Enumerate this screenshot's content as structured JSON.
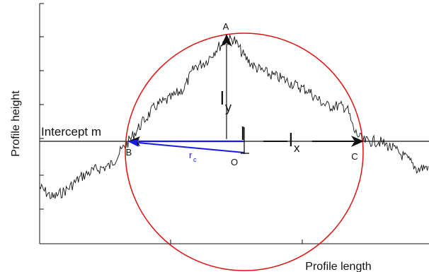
{
  "labels": {
    "y_axis": "Profile height",
    "x_axis": "Profile length",
    "intercept": "Intercept m",
    "point_a": "A",
    "point_b": "B",
    "point_c": "C",
    "point_o": "O",
    "l_main": "l",
    "l_y_base": "l",
    "l_y_sub": "y",
    "l_x_base": "l",
    "l_x_sub": "x",
    "r_base": "r",
    "r_sub": "c"
  },
  "colors": {
    "profile": "#111111",
    "circle": "#e01010",
    "radius_arrow": "#1a1ae6",
    "axes": "#111111"
  }
}
